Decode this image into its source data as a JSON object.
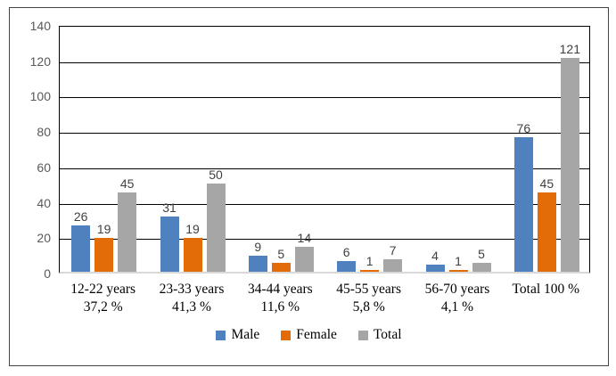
{
  "chart_data": {
    "type": "bar",
    "title": "",
    "categories": [
      "12-22 years",
      "23-33 years",
      "34-44 years",
      "45-55 years",
      "56-70 years",
      "Total 100 %"
    ],
    "category_sublabels": [
      "37,2 %",
      "41,3 %",
      "11,6 %",
      "5,8 %",
      "4,1 %",
      ""
    ],
    "series": [
      {
        "name": "Male",
        "color": "#4E81BD",
        "values": [
          26,
          31,
          9,
          6,
          4,
          76
        ]
      },
      {
        "name": "Female",
        "color": "#E36C09",
        "values": [
          19,
          19,
          5,
          1,
          1,
          45
        ]
      },
      {
        "name": "Total",
        "color": "#A6A6A6",
        "values": [
          45,
          50,
          14,
          7,
          5,
          121
        ]
      }
    ],
    "ylim": [
      0,
      140
    ],
    "y_ticks": [
      0,
      20,
      40,
      60,
      80,
      100,
      120,
      140
    ],
    "grid": "horizontal",
    "legend_position": "bottom",
    "data_labels": true
  },
  "legend": {
    "items": [
      "Male",
      "Female",
      "Total"
    ]
  },
  "styles": {
    "axis_label_color": "#595959",
    "data_label_color": "#404040",
    "category_label_color": "#000000",
    "gridline_color": "#000000",
    "axis_line_color": "#D9D9D9",
    "frame_border_color": "#444444",
    "background": "#FFFFFF"
  }
}
